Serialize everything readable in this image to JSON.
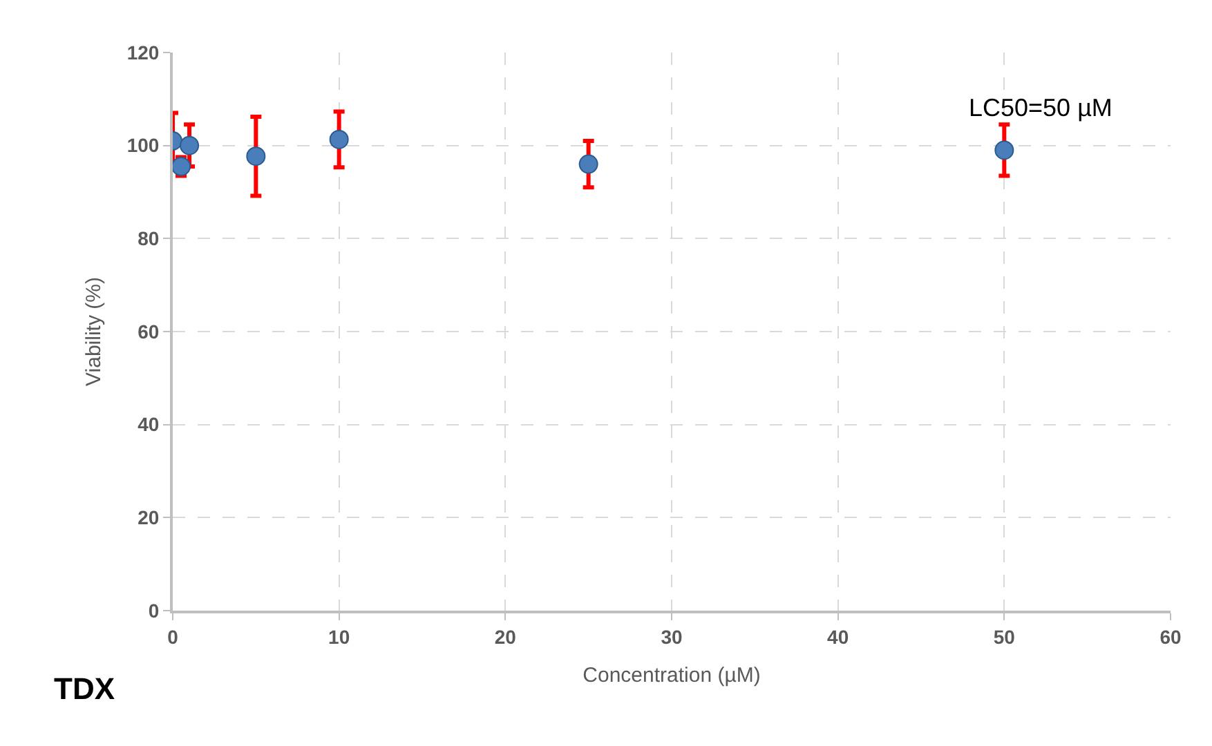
{
  "chart_data": {
    "type": "scatter",
    "xlabel": "Concentration (µM)",
    "ylabel": "Viability (%)",
    "x": [
      0,
      0.5,
      1,
      5,
      10,
      25,
      50
    ],
    "series": [
      {
        "color": "#4a7ebb",
        "values": [
          101,
          95.5,
          100,
          97.7,
          101.3,
          96,
          99
        ],
        "errors": [
          6,
          2,
          4.5,
          8.5,
          6,
          5,
          5.5
        ]
      }
    ],
    "xlim": [
      0,
      60
    ],
    "xticks": [
      0,
      10,
      20,
      30,
      40,
      50,
      60
    ],
    "ylim": [
      0,
      120
    ],
    "yticks": [
      0,
      20,
      40,
      60,
      80,
      100,
      120
    ],
    "grid": true,
    "marker": "circle",
    "legend": false,
    "annotations": [
      "LC50=50 µM",
      "TDX"
    ]
  }
}
